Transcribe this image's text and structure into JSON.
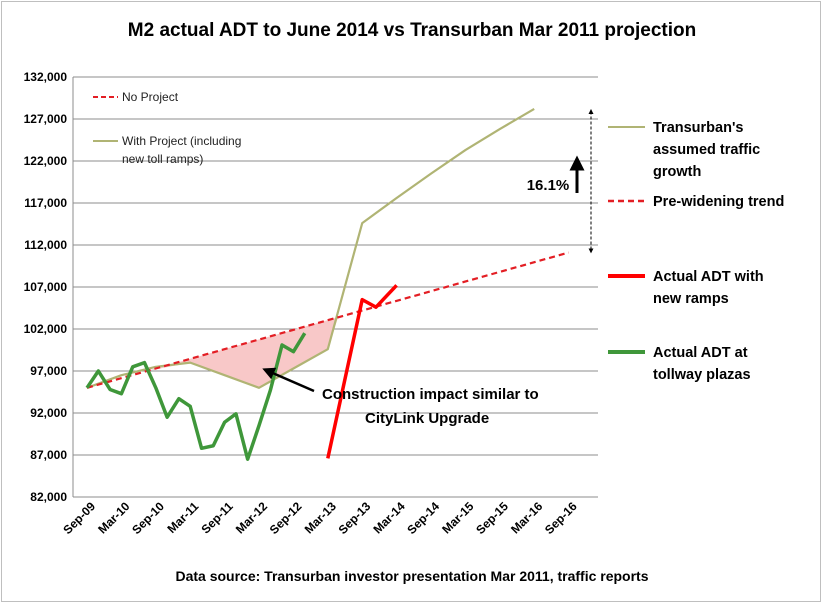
{
  "chart_data": {
    "type": "line",
    "title": "M2 actual ADT  to June 2014 vs Transurban Mar 2011 projection",
    "source": "Data source: Transurban investor presentation Mar 2011, traffic reports",
    "ylim": [
      82000,
      132000
    ],
    "yticks": [
      "82,000",
      "87,000",
      "92,000",
      "97,000",
      "102,000",
      "107,000",
      "112,000",
      "117,000",
      "122,000",
      "127,000",
      "132,000"
    ],
    "yticks_values": [
      82000,
      87000,
      92000,
      97000,
      102000,
      107000,
      112000,
      117000,
      122000,
      127000,
      132000
    ],
    "x_categories": [
      "Sep-09",
      "Mar-10",
      "Sep-10",
      "Mar-11",
      "Sep-11",
      "Mar-12",
      "Sep-12",
      "Mar-13",
      "Sep-13",
      "Mar-14",
      "Sep-14",
      "Mar-15",
      "Sep-15",
      "Mar-16",
      "Sep-16"
    ],
    "grid": "horizontal",
    "inner_legend": {
      "no_project": "No Project",
      "with_project_line1": "With Project (including",
      "with_project_line2": "new toll ramps)"
    },
    "series": [
      {
        "name": "Transurban's assumed traffic growth",
        "label_lines": [
          "Transurban's",
          "assumed traffic",
          "growth"
        ],
        "color": "#b0b474",
        "style": "thin-solid",
        "points": [
          [
            0,
            95000
          ],
          [
            1,
            96500
          ],
          [
            2,
            97500
          ],
          [
            3,
            98000
          ],
          [
            4,
            96500
          ],
          [
            5,
            95000
          ],
          [
            6,
            97300
          ],
          [
            7,
            99600
          ],
          [
            8,
            114600
          ],
          [
            9,
            117600
          ],
          [
            10,
            120500
          ],
          [
            11,
            123300
          ],
          [
            12,
            125800
          ],
          [
            13,
            128200
          ]
        ]
      },
      {
        "name": "Pre-widening trend",
        "label_lines": [
          "Pre-widening trend"
        ],
        "color": "#e31e24",
        "style": "dashed",
        "points": [
          [
            0,
            95000
          ],
          [
            14,
            111100
          ]
        ]
      },
      {
        "name": "Actual ADT with new ramps",
        "label_lines": [
          "Actual ADT with",
          "new ramps"
        ],
        "color": "#ff0000",
        "style": "thick-solid",
        "points": [
          [
            7,
            86600
          ],
          [
            8,
            105500
          ],
          [
            8.4,
            104600
          ],
          [
            9,
            107200
          ]
        ]
      },
      {
        "name": "Actual ADT at tollway plazas",
        "label_lines": [
          "Actual ADT at",
          "tollway plazas"
        ],
        "color": "#3f973a",
        "style": "thick-solid",
        "points": [
          [
            0,
            95000
          ],
          [
            0.33,
            97000
          ],
          [
            0.67,
            94800
          ],
          [
            1,
            94300
          ],
          [
            1.33,
            97500
          ],
          [
            1.67,
            98000
          ],
          [
            2,
            95000
          ],
          [
            2.33,
            91500
          ],
          [
            2.67,
            93700
          ],
          [
            3,
            92800
          ],
          [
            3.33,
            87800
          ],
          [
            3.67,
            88100
          ],
          [
            4,
            90900
          ],
          [
            4.33,
            91900
          ],
          [
            4.67,
            86500
          ],
          [
            5,
            90500
          ],
          [
            5.33,
            94700
          ],
          [
            5.67,
            100100
          ],
          [
            6,
            99300
          ],
          [
            6.33,
            101500
          ]
        ]
      }
    ],
    "shaded_region": {
      "label_lines": [
        "Construction impact similar to",
        "CityLink Upgrade"
      ],
      "fill": "#f8c8c8"
    },
    "gap_annotation": "16.1%"
  }
}
